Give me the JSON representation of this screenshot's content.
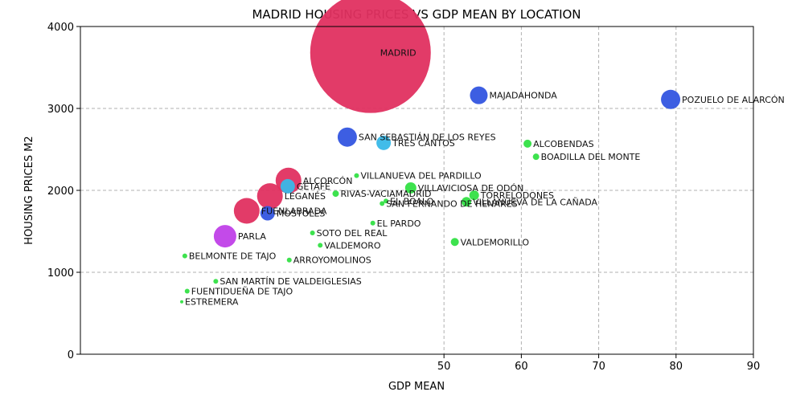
{
  "chart_data": {
    "type": "scatter",
    "title": "MADRID HOUSING PRICES VS GDP MEAN BY LOCATION",
    "xlabel": "GDP MEAN",
    "ylabel": "HOUSING PRICES M2",
    "xlim": [
      3,
      90
    ],
    "ylim": [
      0,
      4000
    ],
    "x_ticks": [
      50,
      60,
      70,
      80,
      90
    ],
    "y_ticks": [
      0,
      1000,
      2000,
      3000,
      4000
    ],
    "grid": true,
    "colors": {
      "red": "#e03060",
      "blue": "#3355e0",
      "cyan": "#38b8e8",
      "green": "#33e044",
      "purple": "#c040e8"
    },
    "points": [
      {
        "label": "MADRID",
        "x": 40.5,
        "y": 3680,
        "size": 75,
        "color": "red"
      },
      {
        "label": "MAJADAHONDA",
        "x": 54.5,
        "y": 3160,
        "size": 11,
        "color": "blue"
      },
      {
        "label": "POZUELO DE ALARCÓN",
        "x": 79.3,
        "y": 3110,
        "size": 12,
        "color": "blue"
      },
      {
        "label": "SAN SEBASTIÁN DE LOS REYES",
        "x": 37.5,
        "y": 2650,
        "size": 12,
        "color": "blue"
      },
      {
        "label": "TRES CANTOS",
        "x": 42.2,
        "y": 2580,
        "size": 9,
        "color": "cyan"
      },
      {
        "label": "ALCOBENDAS",
        "x": 60.8,
        "y": 2570,
        "size": 5,
        "color": "green"
      },
      {
        "label": "BOADILLA DEL MONTE",
        "x": 61.9,
        "y": 2410,
        "size": 4,
        "color": "green"
      },
      {
        "label": "VILLANUEVA DEL PARDILLO",
        "x": 38.7,
        "y": 2180,
        "size": 3,
        "color": "green"
      },
      {
        "label": "ALCORCÓN",
        "x": 29.9,
        "y": 2120,
        "size": 16,
        "color": "red"
      },
      {
        "label": "VILLAVICIOSA DE ODÓN",
        "x": 45.7,
        "y": 2030,
        "size": 7,
        "color": "green"
      },
      {
        "label": "TORRELODONES",
        "x": 53.9,
        "y": 1940,
        "size": 6,
        "color": "green"
      },
      {
        "label": "VILLANUEVA DE LA CAÑADA",
        "x": 52.9,
        "y": 1860,
        "size": 6,
        "color": "green"
      },
      {
        "label": "VALDEMORILLO",
        "x": 51.4,
        "y": 1370,
        "size": 5,
        "color": "green"
      },
      {
        "label": "GETAFE",
        "x": 29.8,
        "y": 2050,
        "size": 9,
        "color": "cyan"
      },
      {
        "label": "RIVAS-VACIAMADRID",
        "x": 36.0,
        "y": 1960,
        "size": 4,
        "color": "green"
      },
      {
        "label": "LEGANÉS",
        "x": 27.5,
        "y": 1930,
        "size": 16,
        "color": "red"
      },
      {
        "label": "FUENLABRADA",
        "x": 24.5,
        "y": 1750,
        "size": 16,
        "color": "red"
      },
      {
        "label": "MÓSTOLES",
        "x": 27.2,
        "y": 1720,
        "size": 9,
        "color": "blue"
      },
      {
        "label": "PARLA",
        "x": 21.7,
        "y": 1440,
        "size": 14,
        "color": "purple"
      },
      {
        "label": "SAN FERNANDO DE HENARES",
        "x": 42.0,
        "y": 1840,
        "size": 3,
        "color": "green"
      },
      {
        "label": "EL BOALO",
        "x": 42.5,
        "y": 1870,
        "size": 3,
        "color": "green"
      },
      {
        "label": "SOTO DEL REAL",
        "x": 33.0,
        "y": 1480,
        "size": 3,
        "color": "green"
      },
      {
        "label": "EL PARDO",
        "x": 40.8,
        "y": 1600,
        "size": 3,
        "color": "green"
      },
      {
        "label": "BELMONTE DE TAJO",
        "x": 16.5,
        "y": 1200,
        "size": 3,
        "color": "green"
      },
      {
        "label": "VALDEMORO",
        "x": 34.0,
        "y": 1330,
        "size": 3,
        "color": "green"
      },
      {
        "label": "ARROYOMOLINOS",
        "x": 30.0,
        "y": 1150,
        "size": 3,
        "color": "green"
      },
      {
        "label": "SAN MARTÍN DE VALDEIGLESIAS",
        "x": 20.5,
        "y": 890,
        "size": 3,
        "color": "green"
      },
      {
        "label": "FUENTIDUEÑA DE TAJO",
        "x": 16.8,
        "y": 770,
        "size": 3,
        "color": "green"
      },
      {
        "label": "ESTREMERA",
        "x": 16.1,
        "y": 640,
        "size": 2,
        "color": "green"
      }
    ]
  }
}
